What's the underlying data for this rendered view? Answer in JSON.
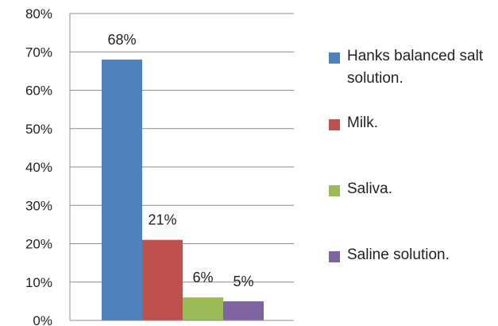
{
  "chart_data": {
    "type": "bar",
    "categories": [
      "Hanks balanced salt solution.",
      "Milk.",
      "Saliva.",
      "Saline solution."
    ],
    "values": [
      68,
      21,
      6,
      5
    ],
    "data_labels": [
      "68%",
      "21%",
      "6%",
      "5%"
    ],
    "y_ticks": [
      "0%",
      "10%",
      "20%",
      "30%",
      "40%",
      "50%",
      "60%",
      "70%",
      "80%"
    ],
    "ylim": [
      0,
      80
    ],
    "title": "",
    "xlabel": "",
    "ylabel": "",
    "grid": true,
    "legend_position": "right",
    "colors": [
      "#4f81bd",
      "#c0504d",
      "#9bbb59",
      "#8064a2"
    ]
  },
  "legend": {
    "items": [
      {
        "label": "Hanks balanced salt solution.",
        "color": "#4f81bd"
      },
      {
        "label": "Milk.",
        "color": "#c0504d"
      },
      {
        "label": "Saliva.",
        "color": "#9bbb59"
      },
      {
        "label": "Saline solution.",
        "color": "#8064a2"
      }
    ]
  }
}
